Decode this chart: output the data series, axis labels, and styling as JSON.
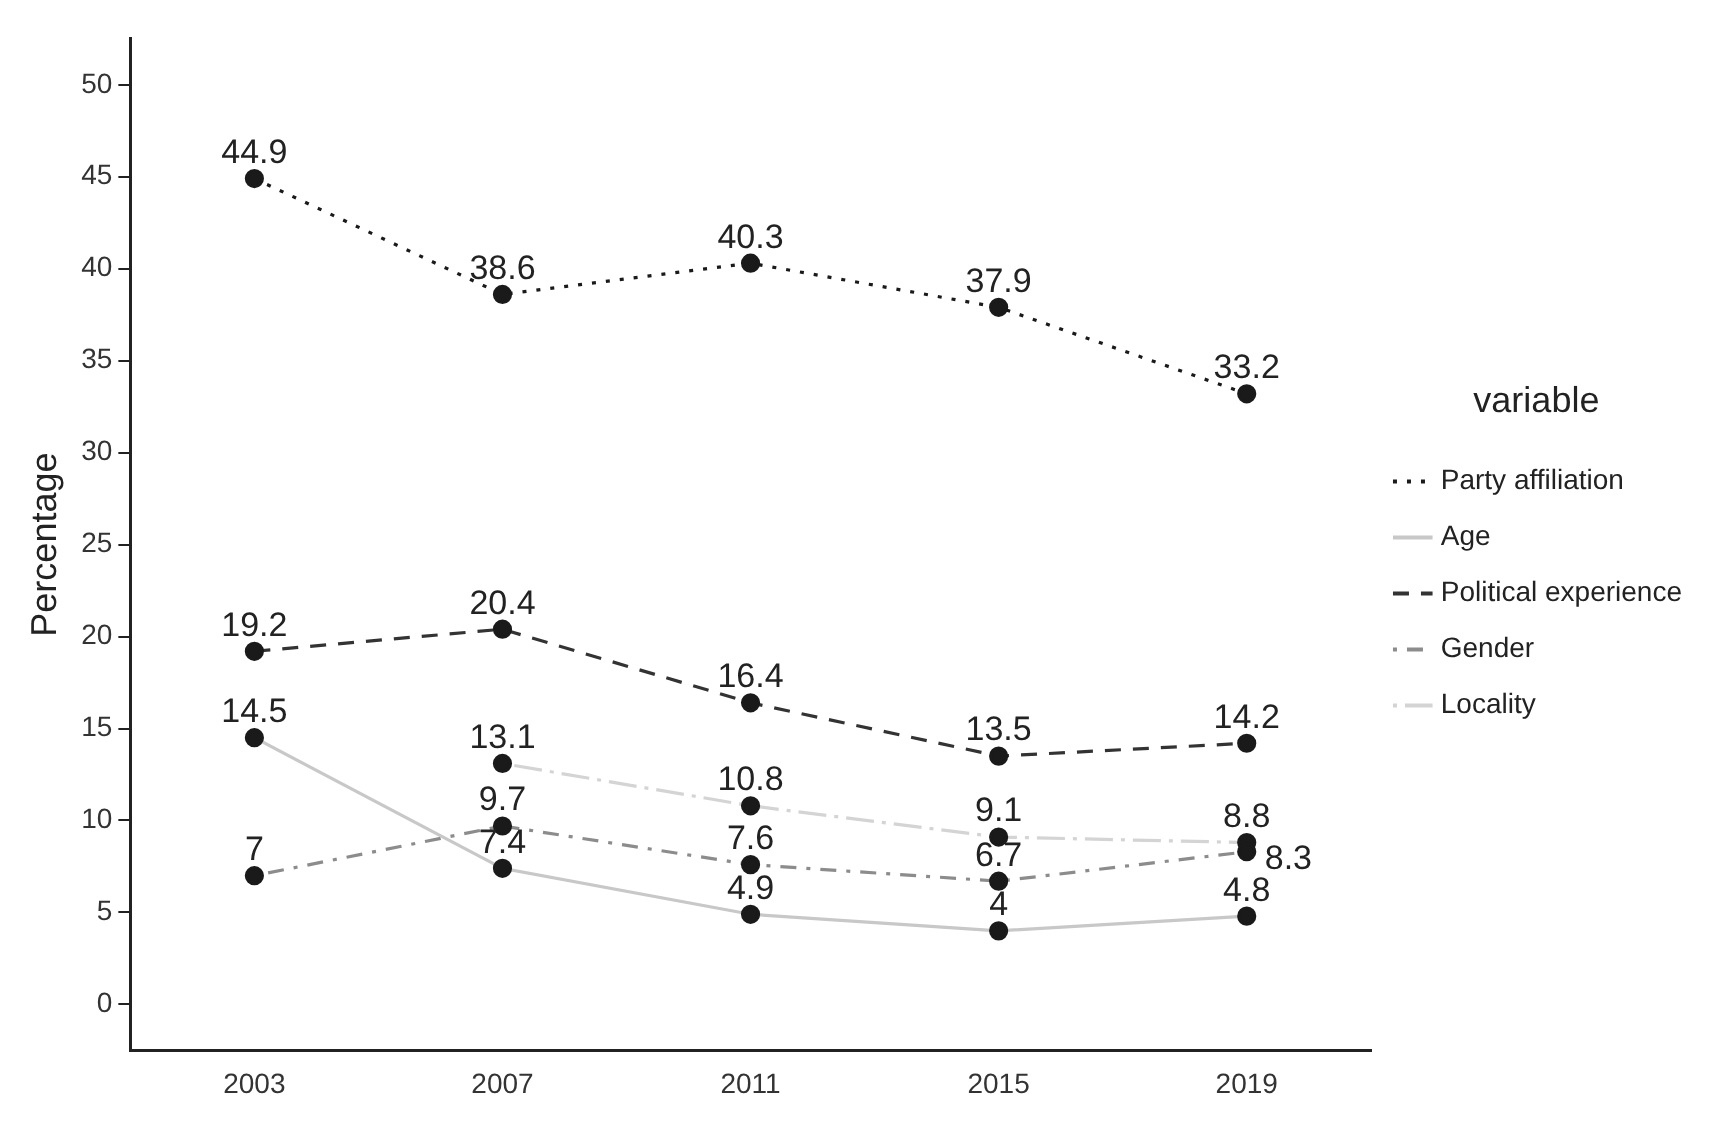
{
  "chart_data": {
    "type": "line",
    "ylabel": "Percentage",
    "legend_title": "variable",
    "categories": [
      "2003",
      "2007",
      "2011",
      "2015",
      "2019"
    ],
    "series": [
      {
        "name": "Party affiliation",
        "color": "#1a1a1a",
        "line_style": "dotted",
        "values": [
          44.9,
          38.6,
          40.3,
          37.9,
          33.2
        ]
      },
      {
        "name": "Age",
        "color": "#c8c8c8",
        "line_style": "solid",
        "values": [
          14.5,
          7.4,
          4.9,
          4.0,
          4.8
        ]
      },
      {
        "name": "Political experience",
        "color": "#333333",
        "line_style": "dashed",
        "values": [
          19.2,
          20.4,
          16.4,
          13.5,
          14.2
        ]
      },
      {
        "name": "Gender",
        "color": "#8c8c8c",
        "line_style": "dashdot",
        "values": [
          7,
          9.7,
          7.6,
          6.7,
          8.3
        ]
      },
      {
        "name": "Locality",
        "color": "#d4d4d4",
        "line_style": "longdashdot",
        "values": [
          null,
          13.1,
          10.8,
          9.1,
          8.8
        ]
      }
    ],
    "ylim": [
      -2.5,
      52.5
    ],
    "yticks": [
      0,
      5,
      10,
      15,
      20,
      25,
      30,
      35,
      40,
      45,
      50
    ],
    "marker": "circle",
    "data_labels": true,
    "grid": false,
    "legend": "right"
  }
}
